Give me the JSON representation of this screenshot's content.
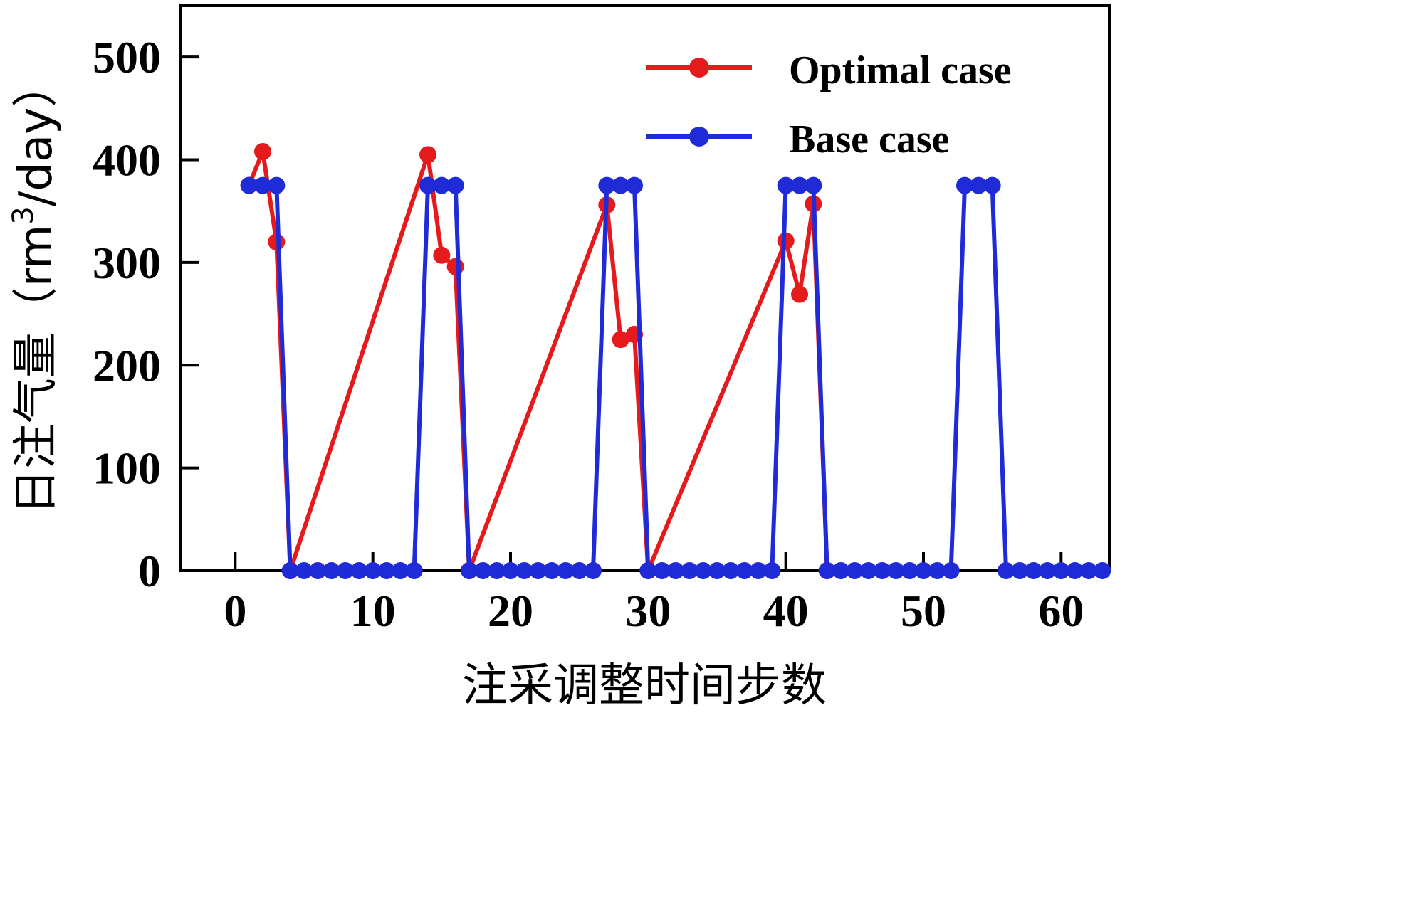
{
  "chart_data": {
    "type": "line",
    "xlabel": "注采调整时间步数",
    "ylabel_main": "日注气量（rm",
    "ylabel_sup": "3",
    "ylabel_end": "/day）",
    "xlim": [
      -4,
      63.5
    ],
    "ylim": [
      0,
      550
    ],
    "xticks": [
      0,
      10,
      20,
      30,
      40,
      50,
      60
    ],
    "yticks": [
      0,
      100,
      200,
      300,
      400,
      500
    ],
    "legend_position": "top-right",
    "grid": false,
    "series": [
      {
        "name": "Optimal case",
        "color": "#e41a1c",
        "points": [
          [
            1,
            375
          ],
          [
            2,
            408
          ],
          [
            3,
            320
          ],
          [
            4,
            0
          ],
          [
            14,
            405
          ],
          [
            15,
            307
          ],
          [
            16,
            296
          ],
          [
            17,
            0
          ],
          [
            27,
            356
          ],
          [
            28,
            225
          ],
          [
            29,
            230
          ],
          [
            30,
            0
          ],
          [
            40,
            321
          ],
          [
            41,
            269
          ],
          [
            42,
            357
          ],
          [
            43,
            0
          ]
        ]
      },
      {
        "name": "Base case",
        "color": "#1f2bd6",
        "points": [
          [
            1,
            375
          ],
          [
            2,
            375
          ],
          [
            3,
            375
          ],
          [
            4,
            0
          ],
          [
            5,
            0
          ],
          [
            6,
            0
          ],
          [
            7,
            0
          ],
          [
            8,
            0
          ],
          [
            9,
            0
          ],
          [
            10,
            0
          ],
          [
            11,
            0
          ],
          [
            12,
            0
          ],
          [
            13,
            0
          ],
          [
            14,
            375
          ],
          [
            15,
            375
          ],
          [
            16,
            375
          ],
          [
            17,
            0
          ],
          [
            18,
            0
          ],
          [
            19,
            0
          ],
          [
            20,
            0
          ],
          [
            21,
            0
          ],
          [
            22,
            0
          ],
          [
            23,
            0
          ],
          [
            24,
            0
          ],
          [
            25,
            0
          ],
          [
            26,
            0
          ],
          [
            27,
            375
          ],
          [
            28,
            375
          ],
          [
            29,
            375
          ],
          [
            30,
            0
          ],
          [
            31,
            0
          ],
          [
            32,
            0
          ],
          [
            33,
            0
          ],
          [
            34,
            0
          ],
          [
            35,
            0
          ],
          [
            36,
            0
          ],
          [
            37,
            0
          ],
          [
            38,
            0
          ],
          [
            39,
            0
          ],
          [
            40,
            375
          ],
          [
            41,
            375
          ],
          [
            42,
            375
          ],
          [
            43,
            0
          ],
          [
            44,
            0
          ],
          [
            45,
            0
          ],
          [
            46,
            0
          ],
          [
            47,
            0
          ],
          [
            48,
            0
          ],
          [
            49,
            0
          ],
          [
            50,
            0
          ],
          [
            51,
            0
          ],
          [
            52,
            0
          ],
          [
            53,
            375
          ],
          [
            54,
            375
          ],
          [
            55,
            375
          ],
          [
            56,
            0
          ],
          [
            57,
            0
          ],
          [
            58,
            0
          ],
          [
            59,
            0
          ],
          [
            60,
            0
          ],
          [
            61,
            0
          ],
          [
            62,
            0
          ],
          [
            63,
            0
          ]
        ]
      }
    ]
  }
}
